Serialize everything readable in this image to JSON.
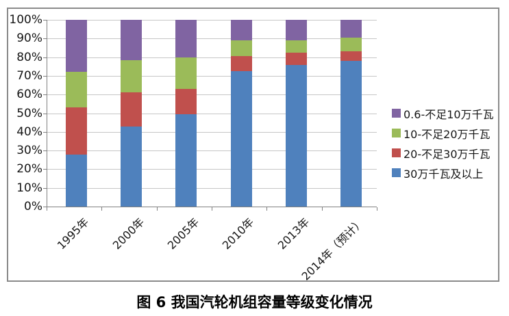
{
  "figure_caption": "图 6  我国汽轮机组容量等级变化情况",
  "chart_data": {
    "type": "bar",
    "subtype": "100%-stacked-column",
    "title": "",
    "xlabel": "",
    "ylabel": "",
    "grid": true,
    "legend_position": "right",
    "categories": [
      "1995年",
      "2000年",
      "2005年",
      "2010年",
      "2013年",
      "2014年（预计）"
    ],
    "series": [
      {
        "name": "30万千瓦及以上",
        "color": "#4f81bd",
        "values": [
          28,
          43,
          49.5,
          72.5,
          76,
          78
        ]
      },
      {
        "name": "20-不足30万千瓦",
        "color": "#c0504d",
        "values": [
          25,
          18,
          13.5,
          8,
          6.5,
          5
        ]
      },
      {
        "name": "10-不足20万千瓦",
        "color": "#9bbb59",
        "values": [
          19,
          17.5,
          17,
          8.5,
          6.5,
          7.5
        ]
      },
      {
        "name": "0.6-不足10万千瓦",
        "color": "#8064a2",
        "values": [
          28,
          21.5,
          20,
          11,
          11,
          9.5
        ]
      }
    ],
    "legend_order_top_to_bottom": [
      "0.6-不足10万千瓦",
      "10-不足20万千瓦",
      "20-不足30万千瓦",
      "30万千瓦及以上"
    ],
    "y_axis": {
      "min": 0,
      "max": 100,
      "tick_labels": [
        "0%",
        "10%",
        "20%",
        "30%",
        "40%",
        "50%",
        "60%",
        "70%",
        "80%",
        "90%",
        "100%"
      ]
    }
  },
  "colors": {
    "grid_line": "#c6c6c6",
    "axis_line": "#808080",
    "frame_border": "#8a8a8a",
    "text": "#151515"
  }
}
